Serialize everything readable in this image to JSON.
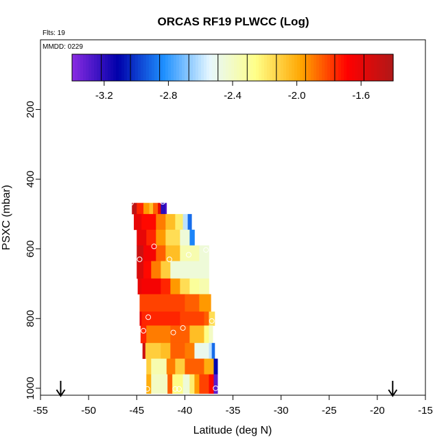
{
  "chart_data": {
    "type": "heatmap",
    "title": "ORCAS RF19 PLWCC (Log)",
    "flights_label": "Flts: 19",
    "date_label": "MMDD: 0229",
    "xlabel": "Latitude (deg N)",
    "ylabel": "PSXC (mbar)",
    "xlim": [
      -55,
      -15
    ],
    "ylim": [
      1020,
      0
    ],
    "x_ticks": [
      -55,
      -50,
      -45,
      -40,
      -35,
      -30,
      -25,
      -20,
      -15
    ],
    "y_ticks": [
      200,
      400,
      600,
      800,
      1000
    ],
    "colorbar": {
      "range": [
        -3.4,
        -1.4
      ],
      "ticks": [
        -3.2,
        -2.8,
        -2.4,
        -2.0,
        -1.6
      ],
      "tick_labels": [
        "-3.2",
        "-2.8",
        "-2.4",
        "-2.0",
        "-1.6"
      ],
      "colors": [
        "#8a2be2",
        "#0000aa",
        "#1e90ff",
        "#e6f7ff",
        "#ffff88",
        "#ffa500",
        "#ff0000",
        "#b01818"
      ]
    },
    "arrows_latitude": [
      -52.9,
      -18.4
    ],
    "bands": [
      {
        "p_top": 468,
        "p_bot": 500,
        "segments": [
          [
            -45.5,
            -1.45
          ],
          [
            -45.0,
            -1.75
          ],
          [
            -44.3,
            -1.95
          ],
          [
            -43.7,
            -2.05
          ],
          [
            -43.3,
            -1.85
          ],
          [
            -42.8,
            -1.6
          ],
          [
            -42.5,
            -3.2
          ],
          [
            -42.0,
            -3.3
          ]
        ],
        "lat_end": -41.9
      },
      {
        "p_top": 500,
        "p_bot": 545,
        "segments": [
          [
            -45.3,
            -1.6
          ],
          [
            -44.5,
            -1.7
          ],
          [
            -43.0,
            -1.9
          ],
          [
            -42.0,
            -2.05
          ],
          [
            -41.0,
            -2.2
          ],
          [
            -40.2,
            -2.6
          ],
          [
            -39.7,
            -2.9
          ]
        ],
        "lat_end": -39.3
      },
      {
        "p_top": 545,
        "p_bot": 590,
        "segments": [
          [
            -45.0,
            -1.6
          ],
          [
            -44.0,
            -1.75
          ],
          [
            -43.0,
            -1.95
          ],
          [
            -42.0,
            -2.15
          ],
          [
            -40.5,
            -2.45
          ],
          [
            -39.5,
            -2.85
          ]
        ],
        "lat_end": -39.0
      },
      {
        "p_top": 590,
        "p_bot": 635,
        "segments": [
          [
            -45.0,
            -1.5
          ],
          [
            -44.3,
            -1.65
          ],
          [
            -43.0,
            -1.85
          ],
          [
            -42.0,
            -2.05
          ],
          [
            -40.5,
            -2.35
          ],
          [
            -38.5,
            -2.45
          ]
        ],
        "lat_end": -37.5
      },
      {
        "p_top": 635,
        "p_bot": 685,
        "segments": [
          [
            -45.0,
            -1.55
          ],
          [
            -44.3,
            -1.7
          ],
          [
            -43.5,
            -1.9
          ],
          [
            -42.5,
            -2.1
          ],
          [
            -41.5,
            -2.45
          ],
          [
            -38.0,
            -2.45
          ]
        ],
        "lat_end": -37.5
      },
      {
        "p_top": 685,
        "p_bot": 730,
        "segments": [
          [
            -44.9,
            -1.6
          ],
          [
            -44.5,
            -1.65
          ],
          [
            -42.5,
            -1.75
          ],
          [
            -41.5,
            -1.95
          ],
          [
            -40.5,
            -2.15
          ],
          [
            -39.5,
            -2.3
          ],
          [
            -38.5,
            -2.35
          ]
        ],
        "lat_end": -37.5
      },
      {
        "p_top": 730,
        "p_bot": 780,
        "segments": [
          [
            -44.7,
            -1.8
          ],
          [
            -40.0,
            -1.85
          ],
          [
            -38.5,
            -1.95
          ]
        ],
        "lat_end": -37.3
      },
      {
        "p_top": 780,
        "p_bot": 820,
        "segments": [
          [
            -44.7,
            -1.6
          ],
          [
            -44.5,
            -1.75
          ],
          [
            -40.5,
            -1.8
          ],
          [
            -38.0,
            -1.85
          ],
          [
            -37.5,
            -2.15
          ]
        ],
        "lat_end": -36.9
      },
      {
        "p_top": 820,
        "p_bot": 870,
        "segments": [
          [
            -44.6,
            -1.75
          ],
          [
            -44.0,
            -1.9
          ],
          [
            -41.5,
            -1.85
          ],
          [
            -39.5,
            -2.05
          ],
          [
            -38.0,
            -2.25
          ],
          [
            -37.5,
            -2.4
          ]
        ],
        "lat_end": -37.1
      },
      {
        "p_top": 870,
        "p_bot": 915,
        "segments": [
          [
            -44.4,
            -1.5
          ],
          [
            -44.1,
            -2.1
          ],
          [
            -42.5,
            -2.05
          ],
          [
            -41.5,
            -1.85
          ],
          [
            -40.0,
            -1.9
          ],
          [
            -39.0,
            -2.5
          ],
          [
            -37.5,
            -2.6
          ],
          [
            -37.2,
            -2.9
          ]
        ],
        "lat_end": -36.9
      },
      {
        "p_top": 915,
        "p_bot": 960,
        "segments": [
          [
            -44.0,
            -2.1
          ],
          [
            -43.5,
            -2.35
          ],
          [
            -41.9,
            -1.9
          ],
          [
            -41.0,
            -2.1
          ],
          [
            -40.0,
            -1.85
          ],
          [
            -38.0,
            -2.0
          ],
          [
            -37.0,
            -3.1
          ]
        ],
        "lat_end": -36.6
      },
      {
        "p_top": 960,
        "p_bot": 1015,
        "segments": [
          [
            -44.0,
            -2.0
          ],
          [
            -43.5,
            -2.4
          ],
          [
            -41.8,
            -1.85
          ],
          [
            -41.3,
            -2.25
          ],
          [
            -40.2,
            -2.45
          ],
          [
            -39.5,
            -2.2
          ],
          [
            -39.0,
            -1.95
          ],
          [
            -38.5,
            -1.8
          ],
          [
            -37.5,
            -1.7
          ],
          [
            -37.0,
            -3.3
          ]
        ],
        "lat_end": -36.6
      }
    ],
    "sample_points": [
      {
        "lat": -45.6,
        "p": 468
      },
      {
        "lat": -42.3,
        "p": 465
      },
      {
        "lat": -43.2,
        "p": 593
      },
      {
        "lat": -37.8,
        "p": 603
      },
      {
        "lat": -44.7,
        "p": 630
      },
      {
        "lat": -41.6,
        "p": 630
      },
      {
        "lat": -39.6,
        "p": 617
      },
      {
        "lat": -43.8,
        "p": 796
      },
      {
        "lat": -37.2,
        "p": 807
      },
      {
        "lat": -44.3,
        "p": 835
      },
      {
        "lat": -41.2,
        "p": 840
      },
      {
        "lat": -40.2,
        "p": 827
      },
      {
        "lat": -43.9,
        "p": 1002
      },
      {
        "lat": -41.0,
        "p": 1002
      },
      {
        "lat": -40.6,
        "p": 1002
      },
      {
        "lat": -36.8,
        "p": 1000
      }
    ]
  }
}
